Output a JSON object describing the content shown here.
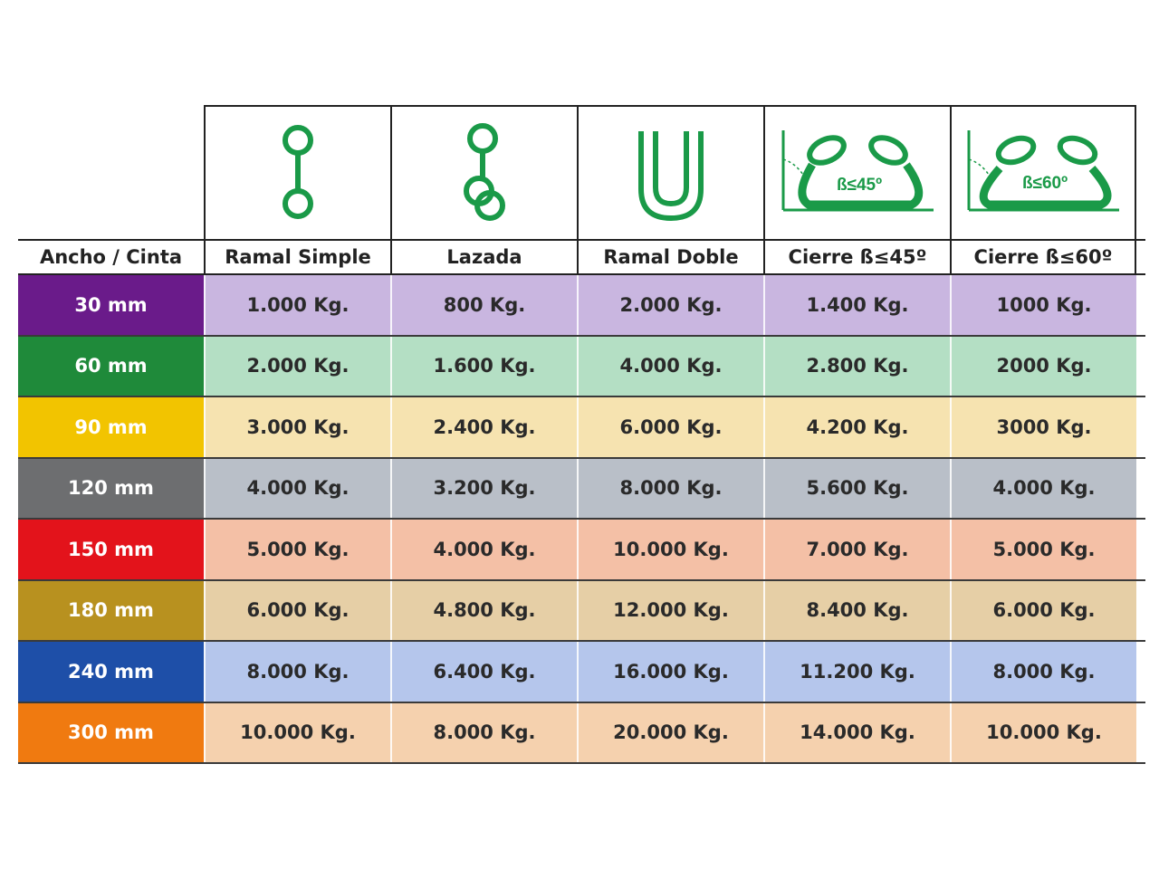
{
  "header": {
    "corner_label": "Ancho / Cinta",
    "columns": [
      {
        "label": "Ramal Simple",
        "icon": "single-leg-sling-icon"
      },
      {
        "label": "Lazada",
        "icon": "choke-loop-sling-icon"
      },
      {
        "label": "Ramal Doble",
        "icon": "basket-u-sling-icon"
      },
      {
        "label": "Cierre ß≤45º",
        "icon": "basket-45-angle-icon",
        "icon_text": "ß≤45º"
      },
      {
        "label": "Cierre ß≤60º",
        "icon": "basket-60-angle-icon",
        "icon_text": "ß≤60º"
      }
    ]
  },
  "rows": [
    {
      "width": "30 mm",
      "color": "#6a1b8a",
      "tint": "#c9b6e0",
      "values": [
        "1.000 Kg.",
        "800 Kg.",
        "2.000 Kg.",
        "1.400 Kg.",
        "1000 Kg."
      ]
    },
    {
      "width": "60 mm",
      "color": "#1f8a3a",
      "tint": "#b4dfc4",
      "values": [
        "2.000 Kg.",
        "1.600 Kg.",
        "4.000 Kg.",
        "2.800 Kg.",
        "2000 Kg."
      ]
    },
    {
      "width": "90 mm",
      "color": "#f2c400",
      "tint": "#f6e3b0",
      "values": [
        "3.000 Kg.",
        "2.400 Kg.",
        "6.000 Kg.",
        "4.200 Kg.",
        "3000 Kg."
      ]
    },
    {
      "width": "120 mm",
      "color": "#6d6e70",
      "tint": "#b9bfc8",
      "values": [
        "4.000 Kg.",
        "3.200 Kg.",
        "8.000 Kg.",
        "5.600 Kg.",
        "4.000 Kg."
      ]
    },
    {
      "width": "150 mm",
      "color": "#e3131b",
      "tint": "#f4c0a6",
      "values": [
        "5.000 Kg.",
        "4.000 Kg.",
        "10.000 Kg.",
        "7.000 Kg.",
        "5.000 Kg."
      ]
    },
    {
      "width": "180 mm",
      "color": "#b8911f",
      "tint": "#e6cfa6",
      "values": [
        "6.000 Kg.",
        "4.800 Kg.",
        "12.000 Kg.",
        "8.400 Kg.",
        "6.000 Kg."
      ]
    },
    {
      "width": "240 mm",
      "color": "#1e4fa8",
      "tint": "#b5c6ec",
      "values": [
        "8.000 Kg.",
        "6.400 Kg.",
        "16.000 Kg.",
        "11.200 Kg.",
        "8.000 Kg."
      ]
    },
    {
      "width": "300 mm",
      "color": "#f07a10",
      "tint": "#f5d1ae",
      "values": [
        "10.000 Kg.",
        "8.000 Kg.",
        "20.000 Kg.",
        "14.000 Kg.",
        "10.000 Kg."
      ]
    }
  ],
  "icon_color": "#1a9a48"
}
